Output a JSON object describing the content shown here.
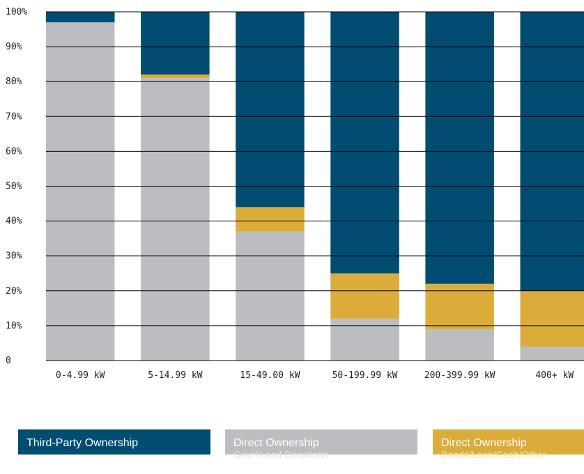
{
  "chart_data": {
    "type": "bar",
    "stacked": true,
    "categories": [
      "0-4.99 kW",
      "5-14.99 kW",
      "15-49.00 kW",
      "50-199.99 kW",
      "200-399.99 kW",
      "400+ kW"
    ],
    "series": [
      {
        "name": "Direct Ownership Grants and Donations",
        "color": "#bcbdc0",
        "values": [
          97,
          81,
          37,
          12,
          9,
          4
        ]
      },
      {
        "name": "Direct Ownership Bonds/Loan/Cash/Other",
        "color": "#dcac3a",
        "values": [
          0,
          1,
          7,
          13,
          13,
          16
        ]
      },
      {
        "name": "Third-Party Ownership",
        "color": "#004d71",
        "values": [
          3,
          18,
          56,
          75,
          78,
          80
        ]
      }
    ],
    "y_ticks": [
      "0",
      "10%",
      "20%",
      "30%",
      "40%",
      "50%",
      "60%",
      "70%",
      "80%",
      "90%",
      "100%"
    ],
    "ylim": [
      0,
      100
    ],
    "grid": true,
    "legend_position": "bottom",
    "title": "",
    "xlabel": "",
    "ylabel": ""
  },
  "legend": {
    "tpo": {
      "title": "Third-Party Ownership",
      "color": "#004d71"
    },
    "grants": {
      "title": "Direct Ownership",
      "subtitle": "Grants and Donations",
      "color": "#bcbdc0"
    },
    "bonds": {
      "title": "Direct Ownership",
      "subtitle": "Bonds/Loan/Cash/Other",
      "color": "#dcac3a"
    }
  }
}
